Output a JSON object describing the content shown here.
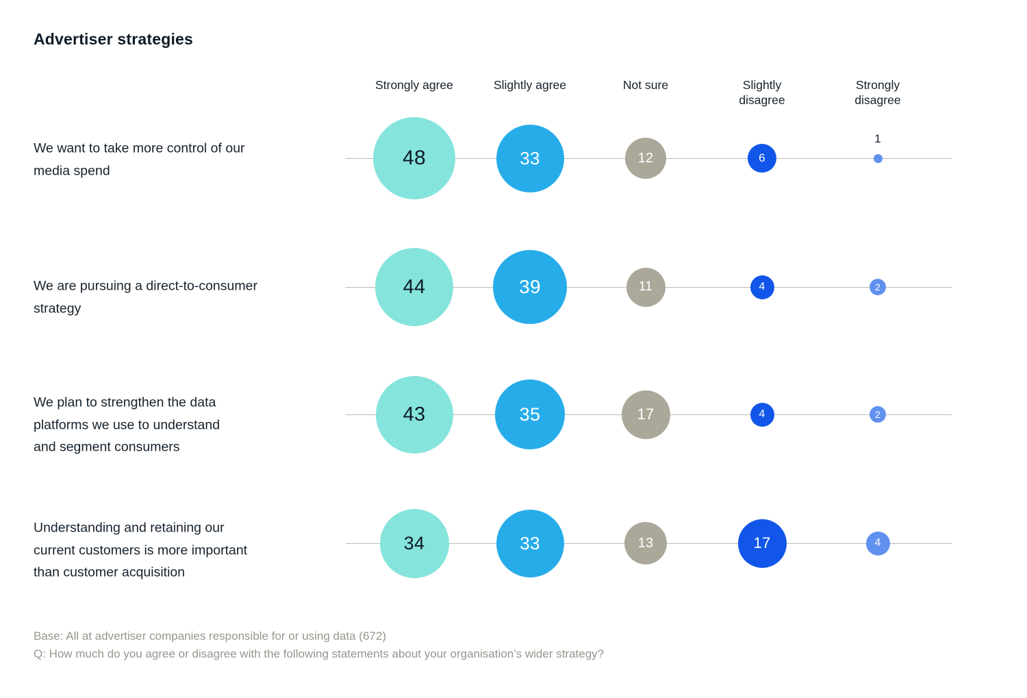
{
  "title": "Advertiser strategies",
  "chart_data": {
    "type": "bubble",
    "title": "Advertiser strategies",
    "units": "percent",
    "legend_position": "top-column-headers",
    "categories": [
      "Strongly agree",
      "Slightly agree",
      "Not sure",
      "Slightly disagree",
      "Strongly disagree"
    ],
    "column_colors": [
      "#85E4DB",
      "#27ACEA",
      "#ABA89A",
      "#1156E9",
      "#6191EE"
    ],
    "number_colors": [
      "#0F1B26",
      "#FFFFFF",
      "#FFFFFF",
      "#FFFFFF",
      "#FFFFFF"
    ],
    "rows": [
      {
        "label_lines": [
          "We want to take more control of our",
          "media spend"
        ],
        "values": [
          48,
          33,
          12,
          6,
          1
        ]
      },
      {
        "label_lines": [
          "We are pursuing a direct-to-consumer",
          "strategy"
        ],
        "values": [
          44,
          39,
          11,
          4,
          2
        ]
      },
      {
        "label_lines": [
          "We plan to strengthen the data",
          "platforms we use to understand",
          "and segment consumers"
        ],
        "values": [
          43,
          35,
          17,
          4,
          2
        ]
      },
      {
        "label_lines": [
          "Understanding and retaining our",
          "current customers is more important",
          "than customer acquisition"
        ],
        "values": [
          34,
          33,
          13,
          17,
          4
        ]
      }
    ]
  },
  "footer": {
    "base": "Base: All at advertiser companies responsible for or using data (672)",
    "question": "Q: How much do you agree or disagree with the following statements about your organisation’s wider strategy?"
  }
}
